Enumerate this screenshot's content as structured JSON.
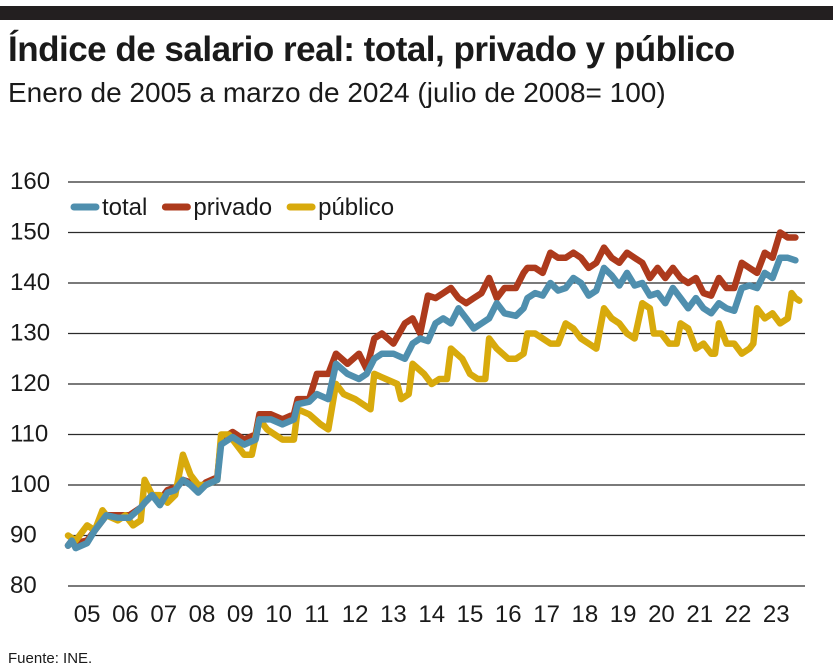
{
  "header": {
    "title": "Índice de salario real: total, privado y público",
    "subtitle": "Enero de 2005 a marzo de 2024 (julio de 2008= 100)"
  },
  "footer": {
    "source": "Fuente: INE."
  },
  "colors": {
    "total": "#4f8fae",
    "privado": "#ad3a1c",
    "publico": "#d8aa0c",
    "grid": "#2b2b2b"
  },
  "chart_data": {
    "type": "line",
    "title": "Índice de salario real: total, privado y público",
    "subtitle": "Enero de 2005 a marzo de 2024 (julio de 2008= 100)",
    "ylim": [
      80,
      160
    ],
    "yticks": [
      "160",
      "150",
      "140",
      "130",
      "120",
      "110",
      "100",
      "90",
      "80"
    ],
    "xticks": [
      "05",
      "06",
      "07",
      "08",
      "09",
      "10",
      "11",
      "12",
      "13",
      "14",
      "15",
      "16",
      "17",
      "18",
      "19",
      "20",
      "21",
      "22",
      "23"
    ],
    "xlim": [
      2005.0,
      2024.25
    ],
    "grid": true,
    "legend": [
      {
        "key": "total",
        "label": "total"
      },
      {
        "key": "privado",
        "label": "privado"
      },
      {
        "key": "publico",
        "label": "público"
      }
    ],
    "series": [
      {
        "name": "total",
        "key": "total",
        "points": [
          [
            2005.0,
            88
          ],
          [
            2005.1,
            89
          ],
          [
            2005.2,
            87.5
          ],
          [
            2005.5,
            88.5
          ],
          [
            2005.7,
            91
          ],
          [
            2005.9,
            93
          ],
          [
            2006.0,
            94
          ],
          [
            2006.3,
            93.5
          ],
          [
            2006.6,
            93.5
          ],
          [
            2006.9,
            95.5
          ],
          [
            2007.0,
            96.5
          ],
          [
            2007.2,
            98
          ],
          [
            2007.4,
            96
          ],
          [
            2007.6,
            98.5
          ],
          [
            2007.8,
            99
          ],
          [
            2008.0,
            101
          ],
          [
            2008.2,
            100
          ],
          [
            2008.4,
            98.5
          ],
          [
            2008.6,
            100
          ],
          [
            2008.9,
            101
          ],
          [
            2009.0,
            108
          ],
          [
            2009.3,
            109.5
          ],
          [
            2009.6,
            108
          ],
          [
            2009.9,
            109
          ],
          [
            2010.0,
            113
          ],
          [
            2010.3,
            113
          ],
          [
            2010.6,
            112
          ],
          [
            2010.9,
            113
          ],
          [
            2011.0,
            116
          ],
          [
            2011.3,
            116.5
          ],
          [
            2011.5,
            118
          ],
          [
            2011.8,
            117
          ],
          [
            2012.0,
            124
          ],
          [
            2012.3,
            122
          ],
          [
            2012.6,
            121
          ],
          [
            2012.8,
            122
          ],
          [
            2013.0,
            125
          ],
          [
            2013.2,
            126
          ],
          [
            2013.5,
            126
          ],
          [
            2013.8,
            125
          ],
          [
            2014.0,
            128
          ],
          [
            2014.2,
            129
          ],
          [
            2014.4,
            128.5
          ],
          [
            2014.6,
            132
          ],
          [
            2014.8,
            133
          ],
          [
            2015.0,
            132
          ],
          [
            2015.2,
            135
          ],
          [
            2015.4,
            133
          ],
          [
            2015.6,
            131
          ],
          [
            2015.8,
            132
          ],
          [
            2016.0,
            133
          ],
          [
            2016.2,
            136
          ],
          [
            2016.4,
            134
          ],
          [
            2016.7,
            133.5
          ],
          [
            2016.9,
            135
          ],
          [
            2017.0,
            137
          ],
          [
            2017.2,
            138
          ],
          [
            2017.4,
            137.5
          ],
          [
            2017.6,
            140
          ],
          [
            2017.8,
            138.5
          ],
          [
            2018.0,
            139
          ],
          [
            2018.2,
            141
          ],
          [
            2018.4,
            140
          ],
          [
            2018.6,
            137.5
          ],
          [
            2018.8,
            138.5
          ],
          [
            2019.0,
            143
          ],
          [
            2019.2,
            141.5
          ],
          [
            2019.4,
            139.5
          ],
          [
            2019.6,
            142
          ],
          [
            2019.8,
            139.5
          ],
          [
            2020.0,
            140
          ],
          [
            2020.2,
            137.5
          ],
          [
            2020.4,
            138
          ],
          [
            2020.6,
            136
          ],
          [
            2020.8,
            139
          ],
          [
            2021.0,
            137
          ],
          [
            2021.2,
            135
          ],
          [
            2021.4,
            137
          ],
          [
            2021.6,
            135
          ],
          [
            2021.8,
            134
          ],
          [
            2022.0,
            136
          ],
          [
            2022.2,
            135
          ],
          [
            2022.4,
            134.5
          ],
          [
            2022.6,
            139
          ],
          [
            2022.8,
            139.5
          ],
          [
            2023.0,
            139
          ],
          [
            2023.2,
            142
          ],
          [
            2023.4,
            141
          ],
          [
            2023.6,
            145
          ],
          [
            2023.8,
            145
          ],
          [
            2024.0,
            144.5
          ]
        ]
      },
      {
        "name": "privado",
        "key": "privado",
        "points": [
          [
            2005.0,
            88
          ],
          [
            2005.1,
            89
          ],
          [
            2005.2,
            88.5
          ],
          [
            2005.5,
            89
          ],
          [
            2005.7,
            91
          ],
          [
            2005.9,
            93
          ],
          [
            2006.0,
            94
          ],
          [
            2006.3,
            94
          ],
          [
            2006.6,
            94
          ],
          [
            2006.9,
            95.5
          ],
          [
            2007.0,
            96.5
          ],
          [
            2007.2,
            98
          ],
          [
            2007.4,
            97
          ],
          [
            2007.6,
            99
          ],
          [
            2007.8,
            99.5
          ],
          [
            2008.0,
            101
          ],
          [
            2008.2,
            100.5
          ],
          [
            2008.4,
            99
          ],
          [
            2008.6,
            100.5
          ],
          [
            2008.9,
            101.5
          ],
          [
            2009.0,
            109
          ],
          [
            2009.3,
            110.5
          ],
          [
            2009.6,
            109
          ],
          [
            2009.9,
            110
          ],
          [
            2010.0,
            114
          ],
          [
            2010.3,
            114
          ],
          [
            2010.6,
            113
          ],
          [
            2010.9,
            114
          ],
          [
            2011.0,
            117
          ],
          [
            2011.3,
            117
          ],
          [
            2011.5,
            122
          ],
          [
            2011.8,
            122
          ],
          [
            2012.0,
            126
          ],
          [
            2012.3,
            124
          ],
          [
            2012.6,
            126
          ],
          [
            2012.8,
            123
          ],
          [
            2013.0,
            129
          ],
          [
            2013.2,
            130
          ],
          [
            2013.5,
            128
          ],
          [
            2013.8,
            132
          ],
          [
            2014.0,
            133
          ],
          [
            2014.2,
            130
          ],
          [
            2014.4,
            137.5
          ],
          [
            2014.6,
            137
          ],
          [
            2014.8,
            138
          ],
          [
            2015.0,
            139
          ],
          [
            2015.2,
            137
          ],
          [
            2015.4,
            136
          ],
          [
            2015.6,
            137
          ],
          [
            2015.8,
            138
          ],
          [
            2016.0,
            141
          ],
          [
            2016.2,
            137
          ],
          [
            2016.4,
            139
          ],
          [
            2016.7,
            139
          ],
          [
            2016.9,
            142
          ],
          [
            2017.0,
            143
          ],
          [
            2017.2,
            143
          ],
          [
            2017.4,
            142
          ],
          [
            2017.6,
            146
          ],
          [
            2017.8,
            145
          ],
          [
            2018.0,
            145
          ],
          [
            2018.2,
            146
          ],
          [
            2018.4,
            145
          ],
          [
            2018.6,
            143
          ],
          [
            2018.8,
            144
          ],
          [
            2019.0,
            147
          ],
          [
            2019.2,
            145
          ],
          [
            2019.4,
            144
          ],
          [
            2019.6,
            146
          ],
          [
            2019.8,
            145
          ],
          [
            2020.0,
            144
          ],
          [
            2020.2,
            141
          ],
          [
            2020.4,
            143
          ],
          [
            2020.6,
            141
          ],
          [
            2020.8,
            143
          ],
          [
            2021.0,
            141
          ],
          [
            2021.2,
            140
          ],
          [
            2021.4,
            141
          ],
          [
            2021.6,
            138
          ],
          [
            2021.8,
            137.5
          ],
          [
            2022.0,
            141
          ],
          [
            2022.2,
            139
          ],
          [
            2022.4,
            139
          ],
          [
            2022.6,
            144
          ],
          [
            2022.8,
            143
          ],
          [
            2023.0,
            142
          ],
          [
            2023.2,
            146
          ],
          [
            2023.4,
            145
          ],
          [
            2023.6,
            150
          ],
          [
            2023.8,
            149
          ],
          [
            2024.0,
            149
          ]
        ]
      },
      {
        "name": "público",
        "key": "publico",
        "points": [
          [
            2005.0,
            90
          ],
          [
            2005.2,
            89
          ],
          [
            2005.5,
            92
          ],
          [
            2005.7,
            91
          ],
          [
            2005.9,
            95
          ],
          [
            2006.0,
            94
          ],
          [
            2006.3,
            93
          ],
          [
            2006.5,
            94
          ],
          [
            2006.7,
            92
          ],
          [
            2006.9,
            93
          ],
          [
            2007.0,
            101
          ],
          [
            2007.2,
            98
          ],
          [
            2007.4,
            98
          ],
          [
            2007.6,
            96.5
          ],
          [
            2007.8,
            98
          ],
          [
            2008.0,
            106
          ],
          [
            2008.2,
            102
          ],
          [
            2008.4,
            100
          ],
          [
            2008.6,
            100
          ],
          [
            2008.9,
            101
          ],
          [
            2009.0,
            110
          ],
          [
            2009.2,
            110
          ],
          [
            2009.4,
            108
          ],
          [
            2009.6,
            106
          ],
          [
            2009.8,
            106
          ],
          [
            2010.0,
            113
          ],
          [
            2010.2,
            111
          ],
          [
            2010.4,
            110
          ],
          [
            2010.6,
            109
          ],
          [
            2010.9,
            109
          ],
          [
            2011.0,
            115
          ],
          [
            2011.3,
            114
          ],
          [
            2011.6,
            112
          ],
          [
            2011.8,
            111
          ],
          [
            2012.0,
            120
          ],
          [
            2012.2,
            118
          ],
          [
            2012.5,
            117
          ],
          [
            2012.7,
            116
          ],
          [
            2012.9,
            115
          ],
          [
            2013.0,
            122
          ],
          [
            2013.3,
            121
          ],
          [
            2013.6,
            120
          ],
          [
            2013.7,
            117
          ],
          [
            2013.9,
            118
          ],
          [
            2014.0,
            124
          ],
          [
            2014.3,
            122
          ],
          [
            2014.5,
            120
          ],
          [
            2014.7,
            121
          ],
          [
            2014.9,
            121
          ],
          [
            2015.0,
            127
          ],
          [
            2015.3,
            125
          ],
          [
            2015.5,
            122
          ],
          [
            2015.7,
            121
          ],
          [
            2015.9,
            121
          ],
          [
            2016.0,
            129
          ],
          [
            2016.2,
            127
          ],
          [
            2016.5,
            125
          ],
          [
            2016.7,
            125
          ],
          [
            2016.9,
            126
          ],
          [
            2017.0,
            130
          ],
          [
            2017.2,
            130
          ],
          [
            2017.4,
            129
          ],
          [
            2017.6,
            128
          ],
          [
            2017.8,
            128
          ],
          [
            2018.0,
            132
          ],
          [
            2018.2,
            131
          ],
          [
            2018.4,
            129
          ],
          [
            2018.6,
            128
          ],
          [
            2018.8,
            127
          ],
          [
            2019.0,
            135
          ],
          [
            2019.2,
            133
          ],
          [
            2019.4,
            132
          ],
          [
            2019.6,
            130
          ],
          [
            2019.8,
            129
          ],
          [
            2020.0,
            136
          ],
          [
            2020.2,
            135
          ],
          [
            2020.3,
            130
          ],
          [
            2020.5,
            130
          ],
          [
            2020.7,
            128
          ],
          [
            2020.9,
            128
          ],
          [
            2021.0,
            132
          ],
          [
            2021.2,
            131
          ],
          [
            2021.4,
            127
          ],
          [
            2021.6,
            128
          ],
          [
            2021.8,
            126
          ],
          [
            2021.9,
            126
          ],
          [
            2022.0,
            132
          ],
          [
            2022.2,
            128
          ],
          [
            2022.4,
            128
          ],
          [
            2022.6,
            126
          ],
          [
            2022.8,
            127
          ],
          [
            2022.9,
            128
          ],
          [
            2023.0,
            135
          ],
          [
            2023.2,
            133
          ],
          [
            2023.4,
            134
          ],
          [
            2023.6,
            132
          ],
          [
            2023.8,
            133
          ],
          [
            2023.9,
            138
          ],
          [
            2024.0,
            137
          ],
          [
            2024.1,
            136.5
          ]
        ]
      }
    ]
  }
}
